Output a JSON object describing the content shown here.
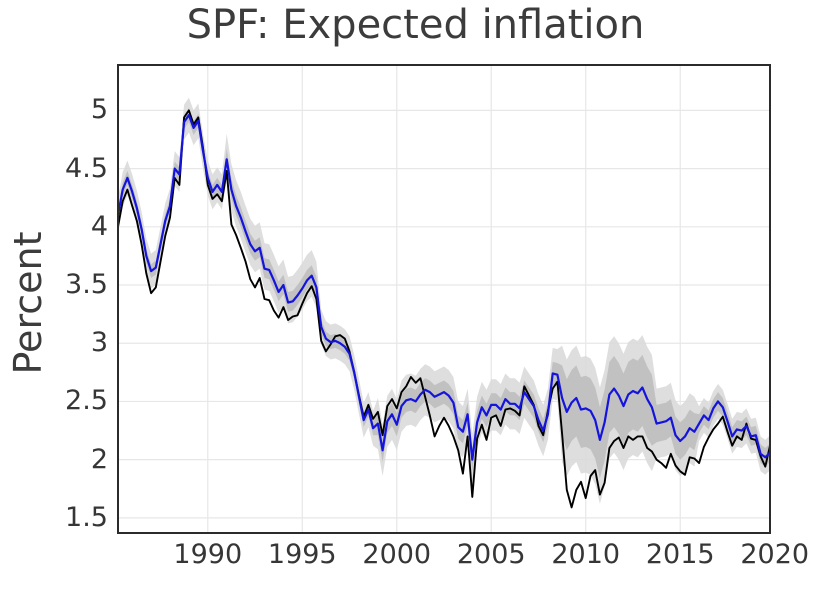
{
  "figure": {
    "title": "SPF: Expected inflation",
    "ylabel": "Percent"
  },
  "axes": {
    "x_min": 1985.25,
    "x_max": 2019.75,
    "y_min": 1.37,
    "y_max": 5.39,
    "x_ticks": [
      1990,
      1995,
      2000,
      2005,
      2010,
      2015,
      2020
    ],
    "x_tick_labels": [
      "1990",
      "1995",
      "2000",
      "2005",
      "2010",
      "2015",
      "2020"
    ],
    "y_ticks": [
      1.5,
      2,
      2.5,
      3,
      3.5,
      4,
      4.5,
      5
    ],
    "y_tick_labels": [
      "1.5",
      "2",
      "2.5",
      "3",
      "3.5",
      "4",
      "4.5",
      "5"
    ],
    "grid": true,
    "grid_color": "#e7e7e7",
    "frame_color": "#2b2b2b",
    "text_color": "#363636"
  },
  "chart_data": {
    "type": "line",
    "title": "SPF: Expected inflation",
    "xlabel": "",
    "ylabel": "Percent",
    "x_start": 1985.25,
    "x_step": 0.25,
    "legend": "none",
    "series": [
      {
        "name": "black-line",
        "color": "#000000",
        "width": 1.9,
        "values": [
          4.0,
          4.22,
          4.32,
          4.18,
          4.05,
          3.85,
          3.6,
          3.43,
          3.48,
          3.7,
          3.92,
          4.08,
          4.42,
          4.36,
          4.94,
          5.0,
          4.88,
          4.94,
          4.68,
          4.36,
          4.24,
          4.28,
          4.22,
          4.48,
          4.02,
          3.93,
          3.82,
          3.7,
          3.55,
          3.48,
          3.56,
          3.38,
          3.37,
          3.28,
          3.22,
          3.31,
          3.2,
          3.23,
          3.24,
          3.34,
          3.43,
          3.49,
          3.38,
          3.02,
          2.93,
          2.99,
          3.06,
          3.07,
          3.04,
          2.93,
          2.75,
          2.55,
          2.37,
          2.47,
          2.35,
          2.41,
          2.21,
          2.46,
          2.52,
          2.44,
          2.58,
          2.63,
          2.71,
          2.66,
          2.7,
          2.54,
          2.38,
          2.2,
          2.29,
          2.36,
          2.29,
          2.2,
          2.08,
          1.88,
          2.2,
          1.68,
          2.18,
          2.3,
          2.17,
          2.36,
          2.38,
          2.29,
          2.43,
          2.44,
          2.42,
          2.38,
          2.63,
          2.55,
          2.47,
          2.29,
          2.21,
          2.42,
          2.61,
          2.67,
          2.22,
          1.74,
          1.59,
          1.74,
          1.81,
          1.67,
          1.86,
          1.91,
          1.7,
          1.8,
          2.1,
          2.16,
          2.19,
          2.1,
          2.2,
          2.17,
          2.2,
          2.2,
          2.1,
          2.07,
          2.0,
          1.97,
          1.93,
          2.05,
          1.95,
          1.9,
          1.87,
          2.02,
          2.01,
          1.97,
          2.11,
          2.19,
          2.26,
          2.31,
          2.37,
          2.24,
          2.12,
          2.2,
          2.17,
          2.31,
          2.18,
          2.17,
          2.03,
          1.94,
          2.12
        ]
      },
      {
        "name": "blue-line",
        "color": "#1414dd",
        "width": 2.2,
        "values": [
          4.1,
          4.32,
          4.42,
          4.3,
          4.16,
          3.98,
          3.75,
          3.62,
          3.65,
          3.85,
          4.05,
          4.18,
          4.5,
          4.45,
          4.9,
          4.96,
          4.85,
          4.91,
          4.65,
          4.42,
          4.3,
          4.36,
          4.3,
          4.58,
          4.32,
          4.18,
          4.08,
          3.96,
          3.85,
          3.79,
          3.82,
          3.64,
          3.63,
          3.54,
          3.44,
          3.5,
          3.35,
          3.36,
          3.41,
          3.47,
          3.54,
          3.58,
          3.48,
          3.14,
          3.04,
          3.01,
          3.02,
          3.0,
          2.97,
          2.91,
          2.75,
          2.54,
          2.34,
          2.43,
          2.27,
          2.31,
          2.08,
          2.33,
          2.39,
          2.3,
          2.46,
          2.51,
          2.52,
          2.5,
          2.56,
          2.6,
          2.58,
          2.54,
          2.56,
          2.58,
          2.55,
          2.49,
          2.28,
          2.24,
          2.39,
          2.0,
          2.32,
          2.45,
          2.38,
          2.47,
          2.47,
          2.43,
          2.52,
          2.48,
          2.48,
          2.44,
          2.58,
          2.52,
          2.46,
          2.34,
          2.25,
          2.39,
          2.74,
          2.73,
          2.53,
          2.41,
          2.49,
          2.53,
          2.43,
          2.44,
          2.42,
          2.34,
          2.17,
          2.32,
          2.56,
          2.61,
          2.55,
          2.46,
          2.56,
          2.59,
          2.57,
          2.62,
          2.52,
          2.45,
          2.31,
          2.32,
          2.33,
          2.36,
          2.21,
          2.16,
          2.2,
          2.27,
          2.24,
          2.31,
          2.38,
          2.34,
          2.44,
          2.5,
          2.45,
          2.33,
          2.2,
          2.26,
          2.25,
          2.29,
          2.2,
          2.21,
          2.05,
          2.02,
          2.06
        ]
      }
    ],
    "bands": {
      "around": "blue-line",
      "inner_color": "#bcbcbc",
      "outer_color": "#d8d8d8",
      "opacity": 0.85,
      "eras": [
        {
          "from": 1985.0,
          "to": 1990.99,
          "inner_up": 0.06,
          "inner_dn": 0.06,
          "outer_up": 0.15,
          "outer_dn": 0.15
        },
        {
          "from": 1991.0,
          "to": 1995.99,
          "inner_up": 0.09,
          "inner_dn": 0.08,
          "outer_up": 0.22,
          "outer_dn": 0.18
        },
        {
          "from": 1996.0,
          "to": 1998.99,
          "inner_up": 0.06,
          "inner_dn": 0.06,
          "outer_up": 0.15,
          "outer_dn": 0.15
        },
        {
          "from": 1999.0,
          "to": 2008.6,
          "inner_up": 0.1,
          "inner_dn": 0.1,
          "outer_up": 0.22,
          "outer_dn": 0.22
        },
        {
          "from": 2008.61,
          "to": 2013.6,
          "inner_up": 0.28,
          "inner_dn": 0.33,
          "outer_up": 0.45,
          "outer_dn": 0.55
        },
        {
          "from": 2013.61,
          "to": 2015.99,
          "inner_up": 0.16,
          "inner_dn": 0.16,
          "outer_up": 0.3,
          "outer_dn": 0.3
        },
        {
          "from": 2016.0,
          "to": 2020.5,
          "inner_up": 0.08,
          "inner_dn": 0.08,
          "outer_up": 0.15,
          "outer_dn": 0.15
        }
      ]
    }
  }
}
